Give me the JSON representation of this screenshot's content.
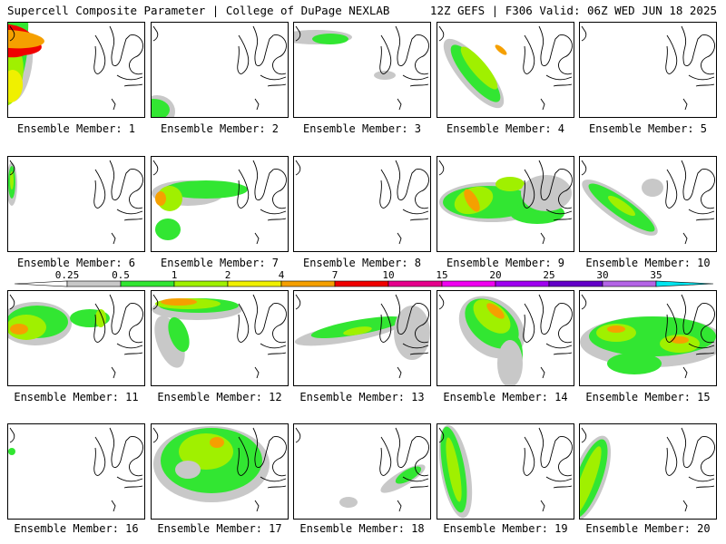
{
  "header": {
    "title": "Supercell Composite Parameter | College of DuPage NEXLAB",
    "run_info": "12Z GEFS | F306 Valid: 06Z WED JUN 18 2025"
  },
  "member_label_prefix": "Ensemble Member:",
  "members": [
    1,
    2,
    3,
    4,
    5,
    6,
    7,
    8,
    9,
    10,
    11,
    12,
    13,
    14,
    15,
    16,
    17,
    18,
    19,
    20
  ],
  "colorbar": {
    "levels": [
      "0.25",
      "0.5",
      "1",
      "2",
      "4",
      "7",
      "10",
      "15",
      "20",
      "25",
      "30",
      "35"
    ],
    "colors": [
      "#c8c8c8",
      "#32e632",
      "#a0f000",
      "#f0f000",
      "#f5a000",
      "#f00000",
      "#e6008c",
      "#f000f0",
      "#a000f0",
      "#6400c8",
      "#b464e6",
      "#00e6f0"
    ]
  }
}
